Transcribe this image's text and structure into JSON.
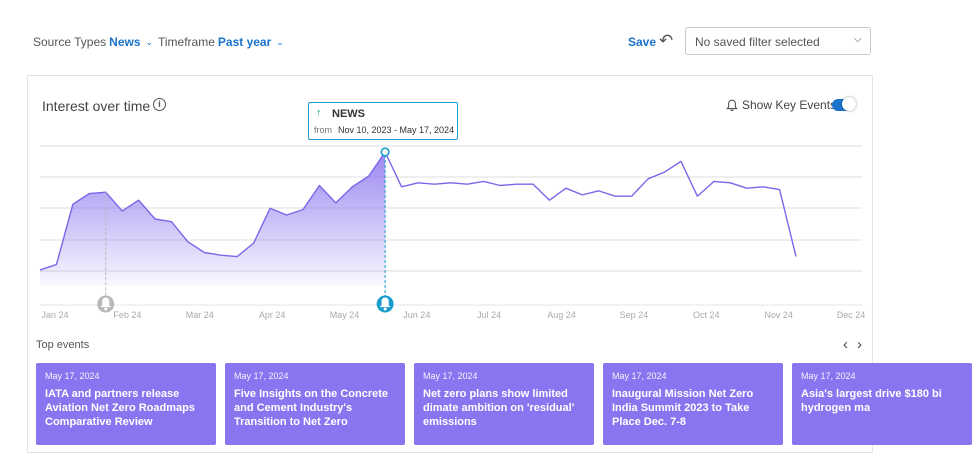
{
  "filters": {
    "source_label": "Source Types",
    "source_value": "News",
    "timeframe_label": "Timeframe",
    "timeframe_value": "Past year"
  },
  "save_label": "Save",
  "saved_filter_text": "No saved filter selected",
  "card": {
    "title": "Interest over time",
    "key_events_label": "Show Key Events",
    "key_events_enabled": true
  },
  "tooltip": {
    "series": "NEWS",
    "from_label": "from",
    "range": "Nov 10, 2023 - May 17, 2024"
  },
  "chart_data": {
    "type": "area",
    "x_ticks": [
      "Jan 24",
      "Feb 24",
      "Mar 24",
      "Apr 24",
      "May 24",
      "Jun 24",
      "Jul 24",
      "Aug 24",
      "Sep 24",
      "Oct 24",
      "Nov 24",
      "Dec 24"
    ],
    "y": [
      12,
      16,
      61,
      69,
      70,
      56,
      64,
      50,
      48,
      33,
      25,
      23,
      22,
      32,
      58,
      53,
      57,
      75,
      62,
      74,
      82,
      100,
      74,
      77,
      76,
      77,
      76,
      78,
      75,
      76,
      76,
      64,
      73,
      68,
      71,
      67,
      67,
      80,
      85,
      93,
      67,
      78,
      77,
      73,
      74,
      72,
      22
    ],
    "ylim": [
      0,
      100
    ],
    "highlight_index": 21,
    "series_color": "#7b66e8",
    "key_event_marker_indices": [
      4,
      21
    ]
  },
  "top_events": {
    "label": "Top events",
    "items": [
      {
        "date": "May 17, 2024",
        "title": "IATA and partners release Aviation Net Zero Roadmaps Comparative Review"
      },
      {
        "date": "May 17, 2024",
        "title": "Five Insights on the Concrete and Cement Industry's Transition to Net Zero"
      },
      {
        "date": "May 17, 2024",
        "title": "Net zero plans show limited dimate ambition on 'residual' emissions"
      },
      {
        "date": "May 17, 2024",
        "title": "Inaugural Mission Net Zero India Summit 2023 to Take Place Dec. 7-8"
      },
      {
        "date": "May 17, 2024",
        "title": "Asia's largest drive $180 bi hydrogen ma"
      }
    ]
  }
}
